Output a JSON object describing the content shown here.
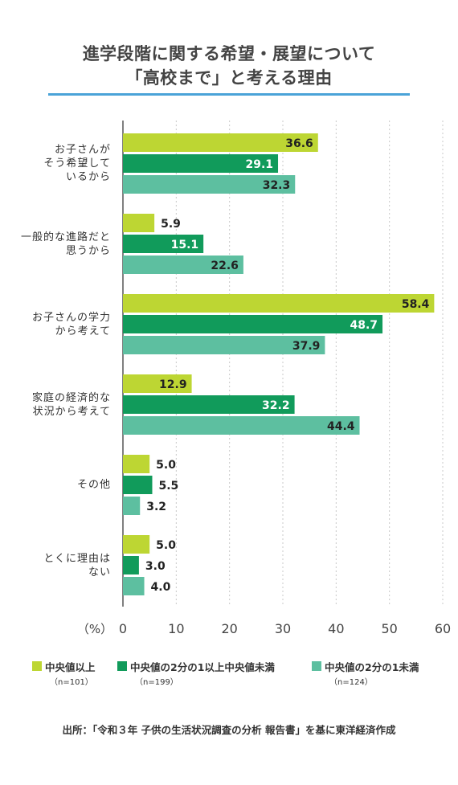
{
  "title_line1": "進学段階に関する希望・展望について",
  "title_line2": "「高校まで」と考える理由",
  "colors": {
    "title_rule": "#4aa3d8",
    "grid": "#c8c8c8",
    "axis": "#555555",
    "series": [
      "#bdd633",
      "#119b5b",
      "#5dbfa0"
    ]
  },
  "chart_data": {
    "type": "bar",
    "orientation": "horizontal",
    "categories": [
      "お子さんが\nそう希望して\nいるから",
      "一般的な進路だと\n思うから",
      "お子さんの学力\nから考えて",
      "家庭の経済的な\n状況から考えて",
      "その他",
      "とくに理由は\nない"
    ],
    "series": [
      {
        "name": "中央値以上",
        "n": "（n=101）",
        "values": [
          36.6,
          5.9,
          58.4,
          12.9,
          5.0,
          5.0
        ]
      },
      {
        "name": "中央値の2分の1以上中央値未満",
        "n": "（n=199）",
        "values": [
          29.1,
          15.1,
          48.7,
          32.2,
          5.5,
          3.0
        ]
      },
      {
        "name": "中央値の2分の1未満",
        "n": "（n=124）",
        "values": [
          32.3,
          22.6,
          37.9,
          44.4,
          3.2,
          4.0
        ]
      }
    ],
    "xlabel": "（%）",
    "xlim": [
      0,
      60
    ],
    "xticks": [
      0,
      10,
      20,
      30,
      40,
      50,
      60
    ],
    "grid": true,
    "legend_position": "bottom"
  },
  "source": "出所：「令和３年 子供の生活状況調査の分析 報告書」を基に東洋経済作成"
}
